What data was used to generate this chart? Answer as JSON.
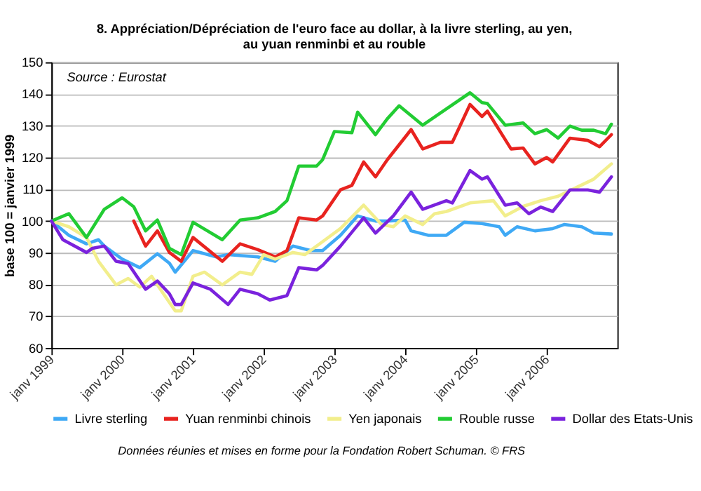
{
  "chart_data": {
    "type": "line",
    "title": "8.  Appréciation/Dépréciation de l'euro face au dollar, à la livre sterling, au yen,\nau yuan renminbi et au rouble",
    "ylabel": "base 100 = janvier 1999",
    "annotations": [
      "Source : Eurostat",
      "Données réunies et mises en forme pour la Fondation Robert Schuman. © FRS"
    ],
    "ylim": [
      60,
      150
    ],
    "yticks": [
      60,
      70,
      80,
      90,
      100,
      110,
      120,
      130,
      140,
      150
    ],
    "xlim": [
      "1999-01",
      "2007-01"
    ],
    "xticks": [
      {
        "value": "1999-01",
        "label": "janv 1999"
      },
      {
        "value": "2000-01",
        "label": "janv 2000"
      },
      {
        "value": "2001-01",
        "label": "janv 2001"
      },
      {
        "value": "2002-01",
        "label": "janv 2002"
      },
      {
        "value": "2003-01",
        "label": "janv 2003"
      },
      {
        "value": "2004-01",
        "label": "janv 2004"
      },
      {
        "value": "2005-01",
        "label": "janv 2005"
      },
      {
        "value": "2006-01",
        "label": "janv 2006"
      }
    ],
    "grid": "y",
    "legend": "bottom",
    "marker": "none",
    "line_style": "solid",
    "series": [
      {
        "name": "Livre sterling",
        "color": "#3fa9f5",
        "x": [
          "1999-01",
          "1999-04",
          "1999-07",
          "1999-09",
          "1999-10",
          "2000-01",
          "2000-04",
          "2000-07",
          "2000-09",
          "2000-10",
          "2001-01",
          "2001-05",
          "2001-07",
          "2001-12",
          "2002-03",
          "2002-06",
          "2002-09",
          "2002-11",
          "2003-02",
          "2003-05",
          "2003-08",
          "2003-10",
          "2004-01",
          "2004-02",
          "2004-05",
          "2004-08",
          "2004-11",
          "2005-02",
          "2005-05",
          "2005-06",
          "2005-08",
          "2005-11",
          "2006-02",
          "2006-04",
          "2006-07",
          "2006-09",
          "2006-12"
        ],
        "values": [
          100,
          95.5,
          92.8,
          94.1,
          92.1,
          88,
          85.3,
          89.7,
          86.7,
          83.9,
          90.7,
          88.7,
          89.4,
          88.7,
          87.3,
          92.1,
          90.7,
          90.7,
          95.5,
          101.6,
          100,
          100,
          100.3,
          96.9,
          95.5,
          95.5,
          99.6,
          99.2,
          98.2,
          95.5,
          98.2,
          96.9,
          97.6,
          98.9,
          98.2,
          96.2,
          95.9
        ]
      },
      {
        "name": "Yuan renminbi chinois",
        "color": "#e8231f",
        "x": [
          "2000-03",
          "2000-05",
          "2000-07",
          "2000-09",
          "2000-11",
          "2001-01",
          "2001-06",
          "2001-09",
          "2001-12",
          "2002-03",
          "2002-05",
          "2002-07",
          "2002-10",
          "2002-11",
          "2003-02",
          "2003-04",
          "2003-06",
          "2003-08",
          "2003-10",
          "2004-02",
          "2004-04",
          "2004-07",
          "2004-09",
          "2004-12",
          "2005-02",
          "2005-03",
          "2005-07",
          "2005-09",
          "2005-11",
          "2006-01",
          "2006-02",
          "2006-05",
          "2006-08",
          "2006-10",
          "2006-12"
        ],
        "values": [
          100,
          92.1,
          96.9,
          90.1,
          87.3,
          94.8,
          87.3,
          92.8,
          91,
          88.7,
          90.7,
          101,
          100.3,
          101.6,
          109.8,
          111.2,
          118.6,
          113.9,
          119.3,
          128.8,
          122.7,
          124.8,
          124.8,
          136.7,
          132.9,
          134.6,
          122.7,
          123,
          118,
          120,
          118.6,
          126.1,
          125.4,
          123.4,
          127.2
        ]
      },
      {
        "name": "Yen japonais",
        "color": "#f2ee8c",
        "x": [
          "1999-01",
          "1999-04",
          "1999-07",
          "1999-09",
          "1999-12",
          "2000-02",
          "2000-04",
          "2000-06",
          "2000-08",
          "2000-10",
          "2000-11",
          "2001-01",
          "2001-03",
          "2001-06",
          "2001-09",
          "2001-11",
          "2002-01",
          "2002-03",
          "2002-06",
          "2002-08",
          "2002-11",
          "2003-02",
          "2003-06",
          "2003-09",
          "2003-11",
          "2004-01",
          "2004-04",
          "2004-06",
          "2004-08",
          "2004-12",
          "2005-04",
          "2005-06",
          "2005-09",
          "2005-12",
          "2006-03",
          "2006-06",
          "2006-09",
          "2006-12"
        ],
        "values": [
          100,
          98.2,
          94.8,
          87.3,
          79.9,
          81.9,
          79.2,
          82.6,
          77.1,
          71.7,
          71.7,
          82.6,
          83.9,
          79.9,
          83.9,
          83.2,
          89.4,
          88,
          90.1,
          89.4,
          93.5,
          97.6,
          105,
          98.9,
          98.2,
          101.6,
          98.9,
          102.3,
          103,
          105.7,
          106.4,
          101.6,
          104.6,
          106.4,
          107.8,
          110.5,
          113.2,
          118
        ]
      },
      {
        "name": "Rouble russe",
        "color": "#22cc33",
        "x": [
          "1999-01",
          "1999-04",
          "1999-07",
          "1999-10",
          "2000-01",
          "2000-03",
          "2000-05",
          "2000-07",
          "2000-09",
          "2000-11",
          "2001-01",
          "2001-06",
          "2001-09",
          "2001-12",
          "2002-03",
          "2002-05",
          "2002-07",
          "2002-10",
          "2002-11",
          "2003-01",
          "2003-04",
          "2003-05",
          "2003-08",
          "2003-10",
          "2003-12",
          "2004-04",
          "2004-07",
          "2004-12",
          "2005-02",
          "2005-03",
          "2005-06",
          "2005-09",
          "2005-11",
          "2006-01",
          "2006-03",
          "2006-05",
          "2006-07",
          "2006-09",
          "2006-11",
          "2006-12"
        ],
        "values": [
          100,
          102.3,
          94.8,
          103.7,
          107.3,
          104.5,
          96.9,
          100.3,
          91.4,
          89.4,
          99.6,
          94.1,
          100.3,
          101,
          103,
          106.4,
          117.3,
          117.3,
          119.3,
          128.2,
          127.8,
          134.3,
          127.2,
          132.2,
          136.3,
          130.2,
          134,
          140.4,
          137.3,
          137,
          130.2,
          130.9,
          127.5,
          128.8,
          126.1,
          129.9,
          128.6,
          128.6,
          127.5,
          130.5
        ]
      },
      {
        "name": "Dollar des Etats-Unis",
        "color": "#7a22dd",
        "x": [
          "1999-01",
          "1999-03",
          "1999-07",
          "1999-08",
          "1999-10",
          "1999-12",
          "2000-02",
          "2000-05",
          "2000-07",
          "2000-09",
          "2000-10",
          "2000-11",
          "2001-01",
          "2001-04",
          "2001-07",
          "2001-09",
          "2001-12",
          "2002-02",
          "2002-05",
          "2002-07",
          "2002-10",
          "2002-11",
          "2003-02",
          "2003-06",
          "2003-08",
          "2003-11",
          "2004-02",
          "2004-04",
          "2004-08",
          "2004-09",
          "2004-12",
          "2005-02",
          "2005-03",
          "2005-06",
          "2005-08",
          "2005-10",
          "2005-12",
          "2006-02",
          "2006-05",
          "2006-08",
          "2006-10",
          "2006-12"
        ],
        "values": [
          100,
          94.1,
          90.1,
          91.4,
          92.1,
          87.3,
          86.6,
          78.5,
          81.1,
          77.1,
          73.7,
          73.7,
          80.5,
          78.5,
          73.7,
          78.5,
          77.1,
          75.1,
          76.5,
          85.3,
          84.6,
          86,
          92.1,
          101,
          96.2,
          101.6,
          109.1,
          103.7,
          106.4,
          105.7,
          115.9,
          113.2,
          113.9,
          105,
          105.7,
          102.3,
          104.4,
          103,
          109.8,
          109.8,
          109.1,
          113.9
        ]
      }
    ]
  }
}
